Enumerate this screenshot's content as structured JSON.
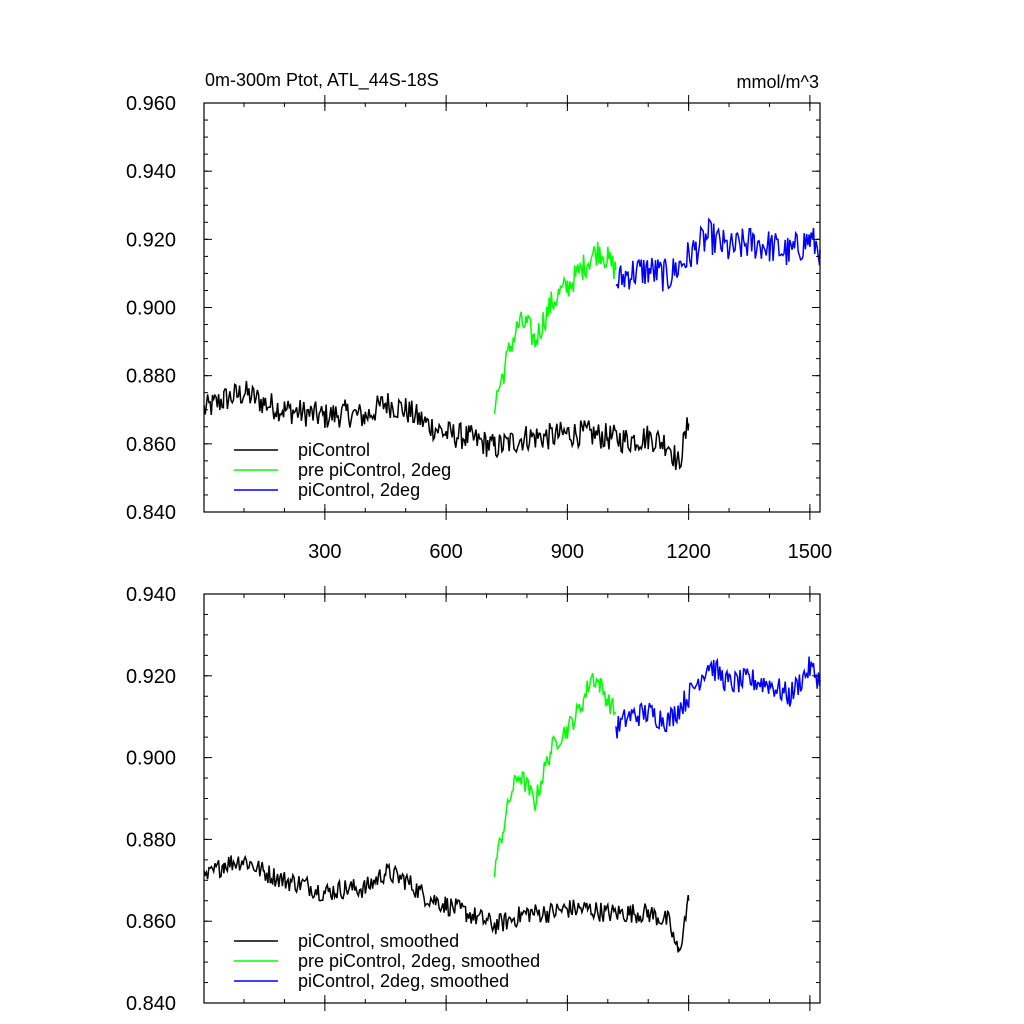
{
  "chart_data": [
    {
      "type": "line",
      "title": "0m-300m Ptot, ATL_44S-18S",
      "units": "mmol/m^3",
      "xlim": [
        1,
        1525
      ],
      "ylim": [
        0.84,
        0.96
      ],
      "x_ticks": [
        300,
        600,
        900,
        1200,
        1500
      ],
      "y_ticks": [
        0.84,
        0.86,
        0.88,
        0.9,
        0.92,
        0.94,
        0.96
      ],
      "y_tick_labels": [
        "0.840",
        "0.860",
        "0.880",
        "0.900",
        "0.920",
        "0.940",
        "0.960"
      ],
      "show_x_labels": true,
      "legend_position": "bottom-left",
      "series": [
        {
          "name": "piControl",
          "color": "#000000",
          "x": [
            1,
            50,
            100,
            150,
            200,
            250,
            300,
            350,
            400,
            450,
            500,
            550,
            600,
            650,
            700,
            720,
            750,
            800,
            850,
            900,
            950,
            1000,
            1050,
            1100,
            1150,
            1175,
            1200
          ],
          "y": [
            0.87,
            0.873,
            0.875,
            0.872,
            0.87,
            0.869,
            0.868,
            0.869,
            0.868,
            0.872,
            0.87,
            0.866,
            0.863,
            0.862,
            0.86,
            0.859,
            0.86,
            0.862,
            0.862,
            0.863,
            0.863,
            0.862,
            0.861,
            0.862,
            0.86,
            0.854,
            0.866
          ],
          "noise": 0.004
        },
        {
          "name": "pre piControl, 2deg",
          "color": "#00ff00",
          "x": [
            720,
            740,
            760,
            780,
            800,
            820,
            840,
            860,
            880,
            900,
            920,
            940,
            960,
            980,
            1000,
            1020
          ],
          "y": [
            0.872,
            0.88,
            0.889,
            0.895,
            0.895,
            0.89,
            0.896,
            0.901,
            0.904,
            0.906,
            0.909,
            0.912,
            0.915,
            0.917,
            0.914,
            0.911
          ],
          "noise": 0.004
        },
        {
          "name": "piControl, 2deg",
          "color": "#0000ff",
          "x": [
            1020,
            1050,
            1100,
            1150,
            1200,
            1250,
            1300,
            1350,
            1400,
            1450,
            1500,
            1525
          ],
          "y": [
            0.907,
            0.91,
            0.911,
            0.909,
            0.915,
            0.921,
            0.917,
            0.919,
            0.918,
            0.916,
            0.92,
            0.917
          ],
          "noise": 0.005
        }
      ]
    },
    {
      "type": "line",
      "title": "",
      "units": "",
      "xlim": [
        1,
        1525
      ],
      "ylim": [
        0.84,
        0.94
      ],
      "x_ticks": [
        300,
        600,
        900,
        1200,
        1500
      ],
      "y_ticks": [
        0.84,
        0.86,
        0.88,
        0.9,
        0.92,
        0.94
      ],
      "y_tick_labels": [
        "0.840",
        "0.860",
        "0.880",
        "0.900",
        "0.920",
        "0.940"
      ],
      "show_x_labels": false,
      "legend_position": "bottom-left",
      "series": [
        {
          "name": "piControl, smoothed",
          "color": "#000000",
          "x": [
            1,
            50,
            100,
            150,
            200,
            250,
            300,
            350,
            400,
            450,
            500,
            550,
            600,
            650,
            700,
            720,
            750,
            800,
            850,
            900,
            950,
            1000,
            1050,
            1100,
            1150,
            1175,
            1200
          ],
          "y": [
            0.87,
            0.874,
            0.875,
            0.872,
            0.87,
            0.869,
            0.867,
            0.868,
            0.868,
            0.872,
            0.87,
            0.866,
            0.864,
            0.862,
            0.86,
            0.859,
            0.86,
            0.862,
            0.862,
            0.863,
            0.863,
            0.862,
            0.862,
            0.862,
            0.86,
            0.852,
            0.865
          ],
          "noise": 0.0025
        },
        {
          "name": "pre piControl, 2deg, smoothed",
          "color": "#00ff00",
          "x": [
            720,
            740,
            760,
            780,
            800,
            820,
            840,
            860,
            880,
            900,
            920,
            940,
            960,
            980,
            1000,
            1020
          ],
          "y": [
            0.873,
            0.882,
            0.891,
            0.896,
            0.893,
            0.889,
            0.896,
            0.902,
            0.905,
            0.907,
            0.91,
            0.914,
            0.92,
            0.918,
            0.914,
            0.911
          ],
          "noise": 0.0025
        },
        {
          "name": "piControl, 2deg, smoothed",
          "color": "#0000ff",
          "x": [
            1020,
            1050,
            1100,
            1150,
            1200,
            1250,
            1300,
            1350,
            1400,
            1450,
            1500,
            1525
          ],
          "y": [
            0.907,
            0.91,
            0.911,
            0.909,
            0.915,
            0.923,
            0.918,
            0.919,
            0.918,
            0.915,
            0.922,
            0.919
          ],
          "noise": 0.003
        }
      ]
    }
  ]
}
